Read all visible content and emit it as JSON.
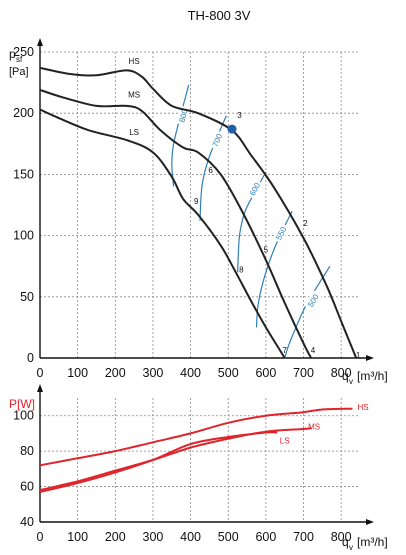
{
  "title": "TH-800 3V",
  "colors": {
    "curve": "#222222",
    "power": "#e0242c",
    "iso": "#2f7fb5",
    "grid": "#8a8a8a",
    "dot": "#1f5fa8",
    "axis": "#111111"
  },
  "chart_data": [
    {
      "type": "line",
      "title": "TH-800 3V",
      "ylabel_main": "p",
      "ylabel_sub": "sf",
      "ylabel_unit": "[Pa]",
      "xlabel_main": "q",
      "xlabel_sub": "v",
      "xlabel_unit": "[m³/h]",
      "xlim": [
        0,
        850
      ],
      "ylim": [
        0,
        250
      ],
      "xticks": [
        0,
        100,
        200,
        300,
        400,
        500,
        600,
        700,
        800
      ],
      "yticks": [
        0,
        50,
        100,
        150,
        200,
        250
      ],
      "grid": true,
      "series": [
        {
          "name": "HS",
          "label_at": [
            250,
            240
          ],
          "points": [
            [
              0,
              237
            ],
            [
              80,
              232
            ],
            [
              150,
              231
            ],
            [
              230,
              235
            ],
            [
              270,
              230
            ],
            [
              300,
              220
            ],
            [
              350,
              206
            ],
            [
              420,
              200
            ],
            [
              510,
              186
            ],
            [
              560,
              166
            ],
            [
              620,
              140
            ],
            [
              700,
              98
            ],
            [
              760,
              60
            ],
            [
              800,
              30
            ],
            [
              840,
              0
            ]
          ]
        },
        {
          "name": "MS",
          "label_at": [
            250,
            213
          ],
          "points": [
            [
              0,
              219
            ],
            [
              60,
              213
            ],
            [
              150,
              206
            ],
            [
              230,
              206
            ],
            [
              270,
              202
            ],
            [
              320,
              186
            ],
            [
              380,
              172
            ],
            [
              420,
              168
            ],
            [
              480,
              150
            ],
            [
              540,
              118
            ],
            [
              600,
              80
            ],
            [
              650,
              45
            ],
            [
              700,
              12
            ],
            [
              720,
              0
            ]
          ]
        },
        {
          "name": "LS",
          "label_at": [
            250,
            182
          ],
          "points": [
            [
              0,
              203
            ],
            [
              50,
              196
            ],
            [
              130,
              186
            ],
            [
              230,
              178
            ],
            [
              300,
              168
            ],
            [
              350,
              148
            ],
            [
              380,
              130
            ],
            [
              420,
              117
            ],
            [
              480,
              92
            ],
            [
              520,
              70
            ],
            [
              560,
              47
            ],
            [
              600,
              25
            ],
            [
              630,
              10
            ],
            [
              650,
              0
            ]
          ]
        }
      ],
      "isolines": [
        {
          "label": "800",
          "label_at": [
            380,
            198
          ],
          "points": [
            [
              395,
              223
            ],
            [
              375,
              200
            ],
            [
              355,
              175
            ],
            [
              350,
              158
            ],
            [
              355,
              140
            ]
          ]
        },
        {
          "label": "700",
          "label_at": [
            470,
            178
          ],
          "points": [
            [
              495,
              198
            ],
            [
              470,
              180
            ],
            [
              445,
              160
            ],
            [
              430,
              140
            ],
            [
              425,
              112
            ]
          ]
        },
        {
          "label": "600",
          "label_at": [
            570,
            138
          ],
          "points": [
            [
              600,
              152
            ],
            [
              570,
              135
            ],
            [
              545,
              120
            ],
            [
              530,
              100
            ],
            [
              525,
              70
            ]
          ]
        },
        {
          "label": "550",
          "label_at": [
            640,
            102
          ],
          "points": [
            [
              670,
              120
            ],
            [
              630,
              95
            ],
            [
              600,
              70
            ],
            [
              580,
              45
            ],
            [
              575,
              25
            ]
          ]
        },
        {
          "label": "500",
          "label_at": [
            725,
            47
          ],
          "points": [
            [
              770,
              75
            ],
            [
              710,
              45
            ],
            [
              680,
              25
            ],
            [
              660,
              10
            ],
            [
              650,
              0
            ]
          ]
        }
      ],
      "points": [
        {
          "label": "1",
          "x": 845,
          "y": 0
        },
        {
          "label": "2",
          "x": 705,
          "y": 108
        },
        {
          "label": "3",
          "x": 530,
          "y": 196
        },
        {
          "label": "4",
          "x": 725,
          "y": 4
        },
        {
          "label": "5",
          "x": 600,
          "y": 86
        },
        {
          "label": "6",
          "x": 453,
          "y": 151
        },
        {
          "label": "7",
          "x": 650,
          "y": 4
        },
        {
          "label": "8",
          "x": 535,
          "y": 70
        },
        {
          "label": "9",
          "x": 415,
          "y": 126
        }
      ],
      "operating_point": {
        "x": 510,
        "y": 187
      }
    },
    {
      "type": "line",
      "ylabel": "P[W]",
      "xlabel_main": "q",
      "xlabel_sub": "v",
      "xlabel_unit": "[m³/h]",
      "xlim": [
        0,
        850
      ],
      "ylim": [
        40,
        110
      ],
      "xticks": [
        0,
        100,
        200,
        300,
        400,
        500,
        600,
        700,
        800
      ],
      "yticks": [
        40,
        60,
        80,
        100
      ],
      "grid": true,
      "series": [
        {
          "name": "HS",
          "label_at": [
            858,
            105
          ],
          "points": [
            [
              0,
              72
            ],
            [
              100,
              76
            ],
            [
              200,
              80
            ],
            [
              300,
              85
            ],
            [
              400,
              90
            ],
            [
              500,
              96
            ],
            [
              600,
              100
            ],
            [
              700,
              102
            ],
            [
              750,
              103.5
            ],
            [
              830,
              104
            ]
          ]
        },
        {
          "name": "MS",
          "label_at": [
            728,
            94
          ],
          "points": [
            [
              0,
              58
            ],
            [
              100,
              63
            ],
            [
              200,
              69
            ],
            [
              300,
              75
            ],
            [
              400,
              82
            ],
            [
              500,
              87
            ],
            [
              600,
              91
            ],
            [
              700,
              92.5
            ],
            [
              720,
              93
            ]
          ]
        },
        {
          "name": "LS",
          "label_at": [
            650,
            86
          ],
          "points": [
            [
              0,
              57
            ],
            [
              100,
              62
            ],
            [
              200,
              68
            ],
            [
              300,
              75
            ],
            [
              400,
              84
            ],
            [
              500,
              88
            ],
            [
              600,
              90.5
            ],
            [
              630,
              90.5
            ]
          ]
        }
      ]
    }
  ]
}
